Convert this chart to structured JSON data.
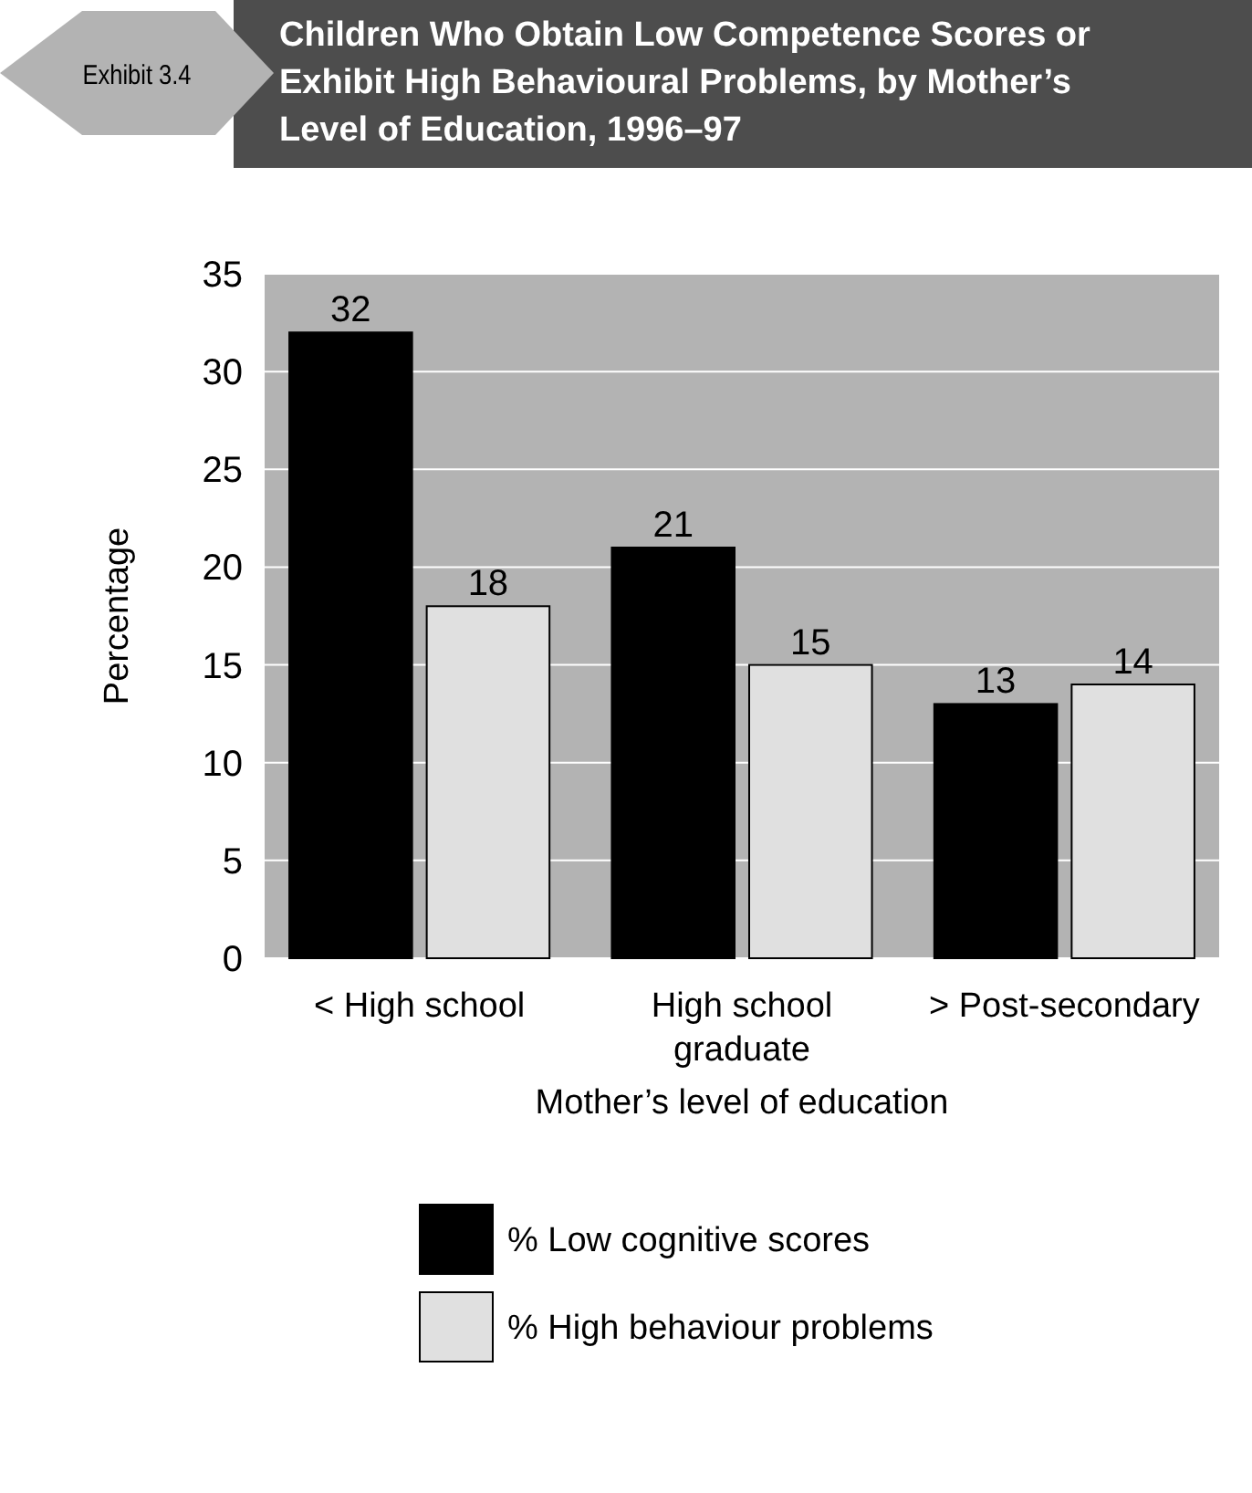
{
  "chart_data": {
    "type": "bar",
    "title": "Children Who Obtain Low Competence Scores or Exhibit High Behavioural Problems, by Mother’s Level of Education, 1996–97",
    "annotations": [
      "Exhibit 3.4"
    ],
    "xlabel": "Mother’s level of education",
    "ylabel": "Percentage",
    "categories": [
      "< High school",
      "High school graduate",
      "> Post-secondary"
    ],
    "series": [
      {
        "name": "% Low cognitive scores",
        "color": "#000000",
        "values": [
          32,
          21,
          13
        ]
      },
      {
        "name": "% High behaviour problems",
        "color": "#e0e0e0",
        "values": [
          18,
          15,
          14
        ]
      }
    ],
    "ylim": [
      0,
      35
    ],
    "yticks": [
      0,
      5,
      10,
      15,
      20,
      25,
      30,
      35
    ],
    "grid": "y",
    "legend": "bottom",
    "data_labels": true
  }
}
